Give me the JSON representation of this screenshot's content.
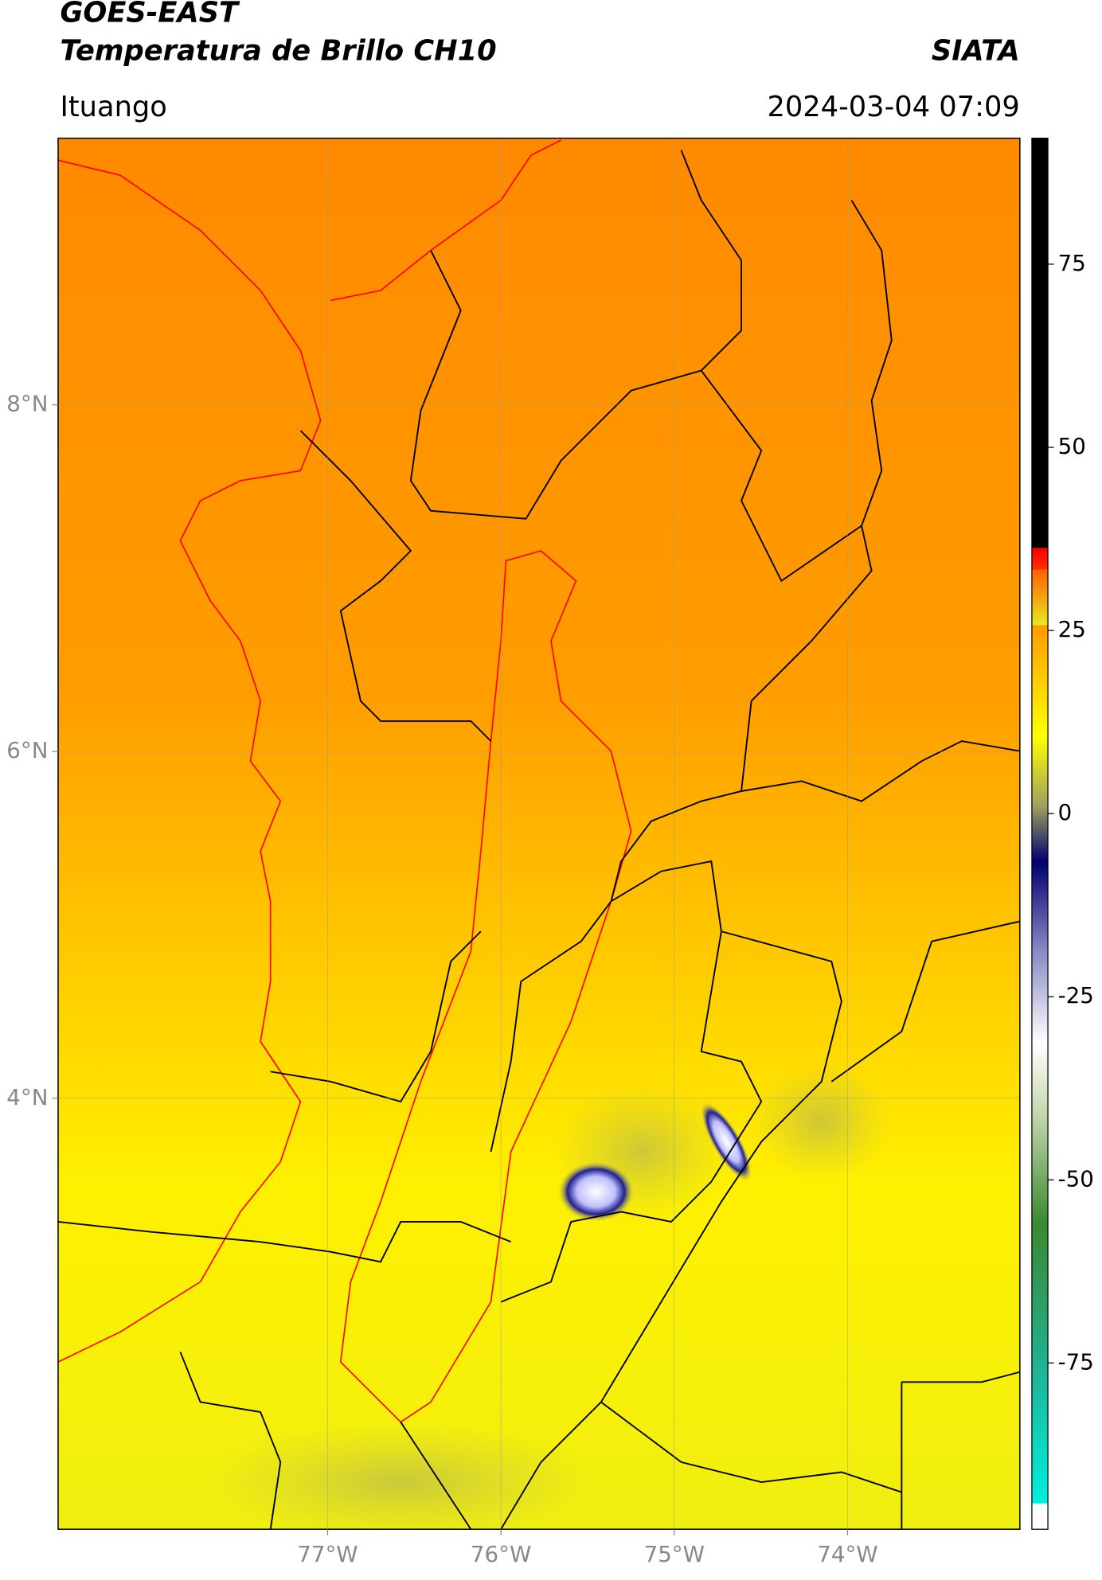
{
  "chart_data": {
    "type": "map",
    "title": "GOES-EAST",
    "subtitle": "Temperatura de Brillo CH10",
    "source": "SIATA",
    "location": "Ituango",
    "datetime": "2024-03-04 07:09",
    "xlim": [
      -78.555,
      -73.006
    ],
    "ylim": [
      1.514,
      9.538
    ],
    "xticks": [
      {
        "value": -77,
        "label": "77°W"
      },
      {
        "value": -76,
        "label": "76°W"
      },
      {
        "value": -75,
        "label": "75°W"
      },
      {
        "value": -74,
        "label": "74°W"
      }
    ],
    "yticks": [
      {
        "value": 8,
        "label": "8°N"
      },
      {
        "value": 6,
        "label": "6°N"
      },
      {
        "value": 4,
        "label": "4°N"
      }
    ],
    "grid": true,
    "colorbar": {
      "clim": [
        -97.7,
        92.2
      ],
      "ticks": [
        75,
        50,
        25,
        0,
        -25,
        -50,
        -75
      ]
    }
  }
}
